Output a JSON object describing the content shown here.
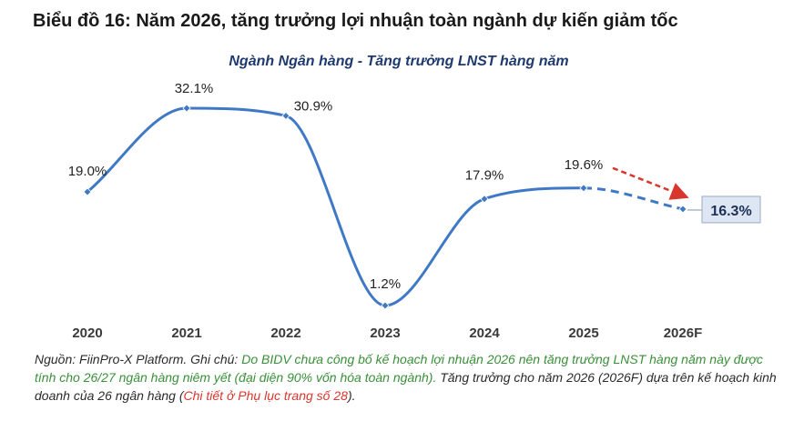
{
  "header": {
    "title": "Biểu đồ 16: Năm 2026, tăng trưởng lợi nhuận toàn ngành dự kiến giảm tốc"
  },
  "chart_data": {
    "type": "line",
    "title": "Ngành Ngân hàng - Tăng trưởng LNST hàng năm",
    "categories": [
      "2020",
      "2021",
      "2022",
      "2023",
      "2024",
      "2025",
      "2026F"
    ],
    "series": [
      {
        "values": [
          19.0,
          32.1,
          30.9,
          1.2,
          17.9,
          19.6,
          16.3
        ]
      }
    ],
    "data_labels": [
      "19.0%",
      "32.1%",
      "30.9%",
      "1.2%",
      "17.9%",
      "19.6%",
      "16.3%"
    ],
    "forecast_from_index": 5,
    "highlight_index": 6,
    "line_color": "#3f79c6",
    "arrow_color": "#d9362e",
    "highlight_box_color": "#dde6f3",
    "ylim": [
      0,
      35
    ],
    "grid": false,
    "legend": "none"
  },
  "footer": {
    "source_label": "Nguồn: FiinPro-X Platform. Ghi chú: ",
    "note_green": "Do BIDV chưa công bố kế hoạch lợi nhuận 2026 nên tăng trưởng LNST hàng năm này được tính cho 26/27 ngân hàng niêm yết (đại diện 90% vốn hóa toàn ngành).",
    "note_rest": " Tăng trưởng cho năm 2026 (2026F) dựa trên kế hoạch kinh doanh của 26 ngân hàng (",
    "note_red": "Chi tiết ở Phụ lục trang số 28",
    "note_end": ")."
  }
}
